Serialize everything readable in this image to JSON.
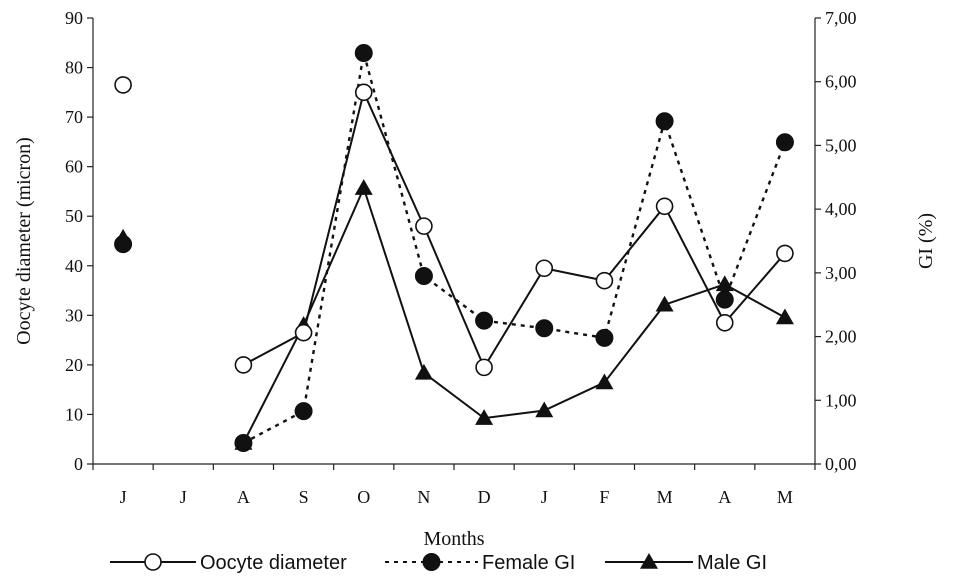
{
  "chart_data": {
    "type": "line",
    "categories": [
      "J",
      "J",
      "A",
      "S",
      "O",
      "N",
      "D",
      "J",
      "F",
      "M",
      "A",
      "M"
    ],
    "xlabel": "Months",
    "ylabel": "Oocyte diameter (micron)",
    "y2label": "GI (%)",
    "ylim": [
      0,
      90
    ],
    "y2lim": [
      0,
      7
    ],
    "yticks": [
      "0",
      "10",
      "20",
      "30",
      "40",
      "50",
      "60",
      "70",
      "80",
      "90"
    ],
    "y2ticks": [
      "0,00",
      "1,00",
      "2,00",
      "3,00",
      "4,00",
      "5,00",
      "6,00",
      "7,00"
    ],
    "grid": false,
    "legend_position": "bottom",
    "series": [
      {
        "name": "Oocyte diameter",
        "axis": "left",
        "marker": "open-circle",
        "line": "solid",
        "values": [
          76.5,
          null,
          20,
          26.5,
          75,
          48,
          19.5,
          39.5,
          37,
          52,
          28.5,
          42.5
        ]
      },
      {
        "name": "Female GI",
        "axis": "right",
        "marker": "filled-circle",
        "line": "dotted",
        "values": [
          3.45,
          null,
          0.33,
          0.83,
          6.45,
          2.95,
          2.25,
          2.13,
          1.98,
          5.38,
          2.58,
          5.05
        ]
      },
      {
        "name": "Male GI",
        "axis": "right",
        "marker": "triangle",
        "line": "solid",
        "values": [
          3.55,
          null,
          0.33,
          2.18,
          4.33,
          1.43,
          0.72,
          0.84,
          1.28,
          2.5,
          2.82,
          2.3
        ]
      }
    ]
  }
}
